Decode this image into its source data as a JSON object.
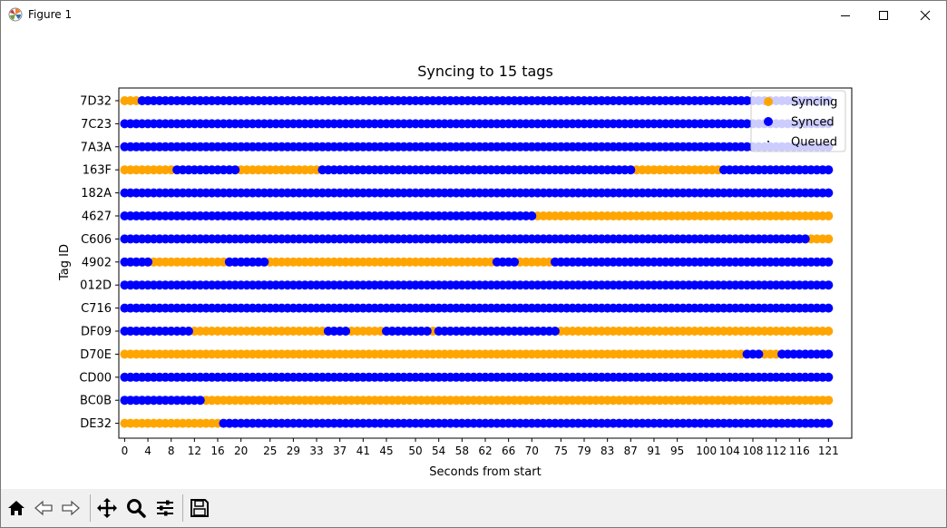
{
  "window": {
    "title": "Figure 1"
  },
  "toolbar": {
    "buttons": [
      {
        "name": "home-icon"
      },
      {
        "name": "back-arrow-icon"
      },
      {
        "name": "forward-arrow-icon"
      },
      {
        "name": "pan-icon"
      },
      {
        "name": "zoom-icon"
      },
      {
        "name": "configure-subplots-icon"
      },
      {
        "name": "save-icon"
      }
    ]
  },
  "colors": {
    "syncing": "#ffa500",
    "synced": "#0000ff",
    "queued": "#000000"
  },
  "chart_data": {
    "type": "scatter",
    "title": "Syncing to 15 tags",
    "xlabel": "Seconds from start",
    "ylabel": "Tag ID",
    "xlim": [
      -1,
      125
    ],
    "x_ticks": [
      0,
      4,
      8,
      12,
      16,
      20,
      25,
      29,
      33,
      37,
      41,
      45,
      50,
      54,
      58,
      62,
      66,
      70,
      75,
      79,
      83,
      87,
      91,
      95,
      100,
      104,
      108,
      112,
      116,
      121
    ],
    "sample_interval": 1,
    "x_start": 0,
    "x_end": 121,
    "tags": [
      "7D32",
      "7C23",
      "7A3A",
      "163F",
      "182A",
      "4627",
      "C606",
      "4902",
      "012D",
      "C716",
      "DF09",
      "D70E",
      "CD00",
      "BC0B",
      "DE32"
    ],
    "legend": {
      "placement": "upper right",
      "entries": [
        "Syncing",
        "Synced",
        "Queued"
      ]
    },
    "series": [
      {
        "name": "Syncing",
        "color": "#ffa500",
        "marker": "circle",
        "ranges": {
          "7D32": [
            [
              0,
              2
            ]
          ],
          "163F": [
            [
              0,
              8
            ],
            [
              20,
              33
            ],
            [
              88,
              102
            ]
          ],
          "4627": [
            [
              71,
              121
            ]
          ],
          "C606": [
            [
              118,
              121
            ]
          ],
          "4902": [
            [
              5,
              17
            ],
            [
              25,
              63
            ],
            [
              68,
              73
            ]
          ],
          "DF09": [
            [
              12,
              34
            ],
            [
              39,
              44
            ],
            [
              53,
              53
            ],
            [
              75,
              121
            ]
          ],
          "D70E": [
            [
              0,
              106
            ],
            [
              110,
              112
            ]
          ],
          "BC0B": [
            [
              14,
              121
            ]
          ],
          "DE32": [
            [
              0,
              16
            ]
          ]
        }
      },
      {
        "name": "Synced",
        "color": "#0000ff",
        "marker": "circle",
        "ranges": {
          "7D32": [
            [
              3,
              121
            ]
          ],
          "7C23": [
            [
              0,
              121
            ]
          ],
          "7A3A": [
            [
              0,
              121
            ]
          ],
          "163F": [
            [
              9,
              19
            ],
            [
              34,
              87
            ],
            [
              103,
              121
            ]
          ],
          "182A": [
            [
              0,
              121
            ]
          ],
          "4627": [
            [
              0,
              70
            ]
          ],
          "C606": [
            [
              0,
              117
            ]
          ],
          "4902": [
            [
              0,
              4
            ],
            [
              18,
              24
            ],
            [
              64,
              67
            ],
            [
              74,
              121
            ]
          ],
          "012D": [
            [
              0,
              121
            ]
          ],
          "C716": [
            [
              0,
              121
            ]
          ],
          "DF09": [
            [
              0,
              11
            ],
            [
              35,
              38
            ],
            [
              45,
              52
            ],
            [
              54,
              74
            ]
          ],
          "D70E": [
            [
              107,
              109
            ],
            [
              113,
              121
            ]
          ],
          "CD00": [
            [
              0,
              121
            ]
          ],
          "BC0B": [
            [
              0,
              13
            ]
          ],
          "DE32": [
            [
              17,
              121
            ]
          ]
        }
      },
      {
        "name": "Queued",
        "color": "#000000",
        "marker": "point",
        "ranges": {}
      }
    ]
  }
}
